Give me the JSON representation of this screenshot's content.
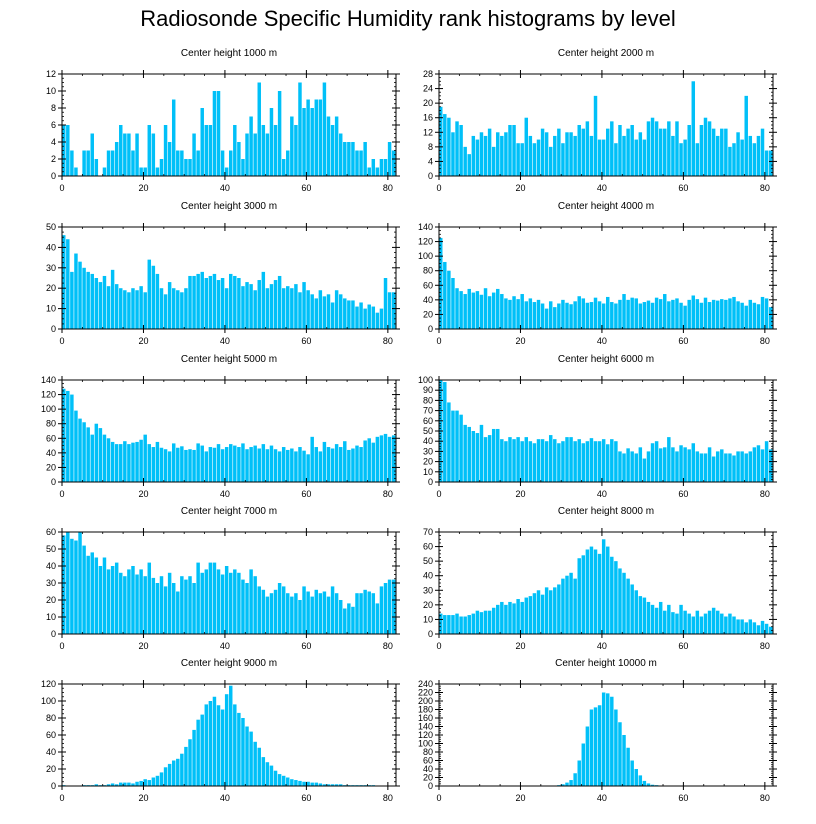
{
  "title": "Radiosonde Specific Humidity rank histograms by level",
  "colors": {
    "bar": "#00C0F8",
    "bar_edge": "#ffffff",
    "axis": "#000000"
  },
  "chart_data": [
    {
      "type": "bar",
      "title": "Center height 1000 m",
      "xlim": [
        0,
        82
      ],
      "ylim": [
        0,
        12
      ],
      "xticks": [
        0,
        20,
        40,
        60,
        80
      ],
      "yticks": [
        0,
        2,
        4,
        6,
        8,
        10,
        12
      ],
      "values": [
        6,
        6,
        3,
        1,
        0,
        3,
        3,
        5,
        2,
        0,
        1,
        3,
        3,
        4,
        6,
        5,
        5,
        3,
        5,
        1,
        1,
        6,
        5,
        1,
        2,
        6,
        4,
        9,
        3,
        3,
        2,
        2,
        5,
        3,
        8,
        6,
        6,
        10,
        10,
        3,
        1,
        3,
        6,
        4,
        2,
        5,
        7,
        5,
        11,
        6,
        5,
        8,
        6,
        10,
        2,
        3,
        7,
        6,
        11,
        8,
        9,
        8,
        9,
        9,
        11,
        7,
        6,
        7,
        5,
        4,
        4,
        4,
        3,
        3,
        4,
        1,
        2,
        1,
        2,
        2,
        4,
        3
      ]
    },
    {
      "type": "bar",
      "title": "Center height 2000 m",
      "xlim": [
        0,
        82
      ],
      "ylim": [
        0,
        28
      ],
      "xticks": [
        0,
        20,
        40,
        60,
        80
      ],
      "yticks": [
        0,
        4,
        8,
        12,
        16,
        20,
        24,
        28
      ],
      "values": [
        19,
        17,
        16,
        12,
        15,
        14,
        8,
        6,
        11,
        10,
        12,
        11,
        13,
        8,
        12,
        11,
        12,
        14,
        14,
        9,
        9,
        16,
        11,
        9,
        10,
        13,
        12,
        8,
        11,
        13,
        9,
        12,
        12,
        11,
        14,
        13,
        15,
        11,
        22,
        10,
        10,
        13,
        15,
        9,
        14,
        11,
        13,
        14,
        10,
        12,
        10,
        15,
        16,
        15,
        13,
        13,
        15,
        11,
        15,
        9,
        10,
        14,
        26,
        9,
        14,
        16,
        15,
        13,
        11,
        13,
        13,
        8,
        9,
        12,
        10,
        22,
        11,
        9,
        11,
        13,
        7,
        7
      ]
    },
    {
      "type": "bar",
      "title": "Center height 3000 m",
      "xlim": [
        0,
        82
      ],
      "ylim": [
        0,
        50
      ],
      "xticks": [
        0,
        20,
        40,
        60,
        80
      ],
      "yticks": [
        0,
        10,
        20,
        30,
        40,
        50
      ],
      "values": [
        46,
        44,
        28,
        37,
        33,
        30,
        28,
        27,
        25,
        23,
        26,
        21,
        29,
        22,
        20,
        19,
        18,
        20,
        19,
        21,
        18,
        34,
        31,
        27,
        20,
        17,
        23,
        20,
        19,
        18,
        20,
        26,
        26,
        27,
        28,
        25,
        26,
        27,
        24,
        25,
        20,
        27,
        26,
        25,
        21,
        23,
        22,
        19,
        24,
        28,
        20,
        22,
        24,
        26,
        20,
        21,
        20,
        22,
        18,
        23,
        19,
        17,
        15,
        19,
        16,
        17,
        13,
        19,
        17,
        15,
        14,
        14,
        11,
        13,
        10,
        12,
        11,
        8,
        10,
        25,
        18,
        18
      ]
    },
    {
      "type": "bar",
      "title": "Center height 4000 m",
      "xlim": [
        0,
        82
      ],
      "ylim": [
        0,
        140
      ],
      "xticks": [
        0,
        20,
        40,
        60,
        80
      ],
      "yticks": [
        0,
        20,
        40,
        60,
        80,
        100,
        120,
        140
      ],
      "values": [
        125,
        92,
        80,
        70,
        56,
        52,
        48,
        55,
        50,
        52,
        47,
        56,
        45,
        50,
        55,
        48,
        42,
        40,
        45,
        41,
        48,
        38,
        42,
        37,
        40,
        35,
        28,
        38,
        30,
        35,
        40,
        36,
        34,
        38,
        45,
        42,
        36,
        37,
        43,
        38,
        35,
        44,
        37,
        35,
        40,
        48,
        40,
        43,
        42,
        35,
        37,
        39,
        36,
        43,
        41,
        48,
        38,
        40,
        42,
        36,
        32,
        40,
        46,
        41,
        36,
        43,
        37,
        40,
        39,
        41,
        40,
        42,
        44,
        38,
        36,
        32,
        40,
        36,
        34,
        44,
        42,
        30
      ]
    },
    {
      "type": "bar",
      "title": "Center height 5000 m",
      "xlim": [
        0,
        82
      ],
      "ylim": [
        0,
        140
      ],
      "xticks": [
        0,
        20,
        40,
        60,
        80
      ],
      "yticks": [
        0,
        20,
        40,
        60,
        80,
        100,
        120,
        140
      ],
      "values": [
        128,
        125,
        120,
        98,
        87,
        82,
        75,
        65,
        80,
        74,
        65,
        60,
        55,
        52,
        52,
        56,
        52,
        54,
        55,
        58,
        65,
        52,
        48,
        55,
        47,
        45,
        42,
        53,
        47,
        49,
        44,
        45,
        44,
        53,
        50,
        42,
        48,
        47,
        52,
        45,
        48,
        52,
        50,
        48,
        53,
        45,
        48,
        50,
        46,
        52,
        45,
        50,
        45,
        42,
        48,
        44,
        46,
        42,
        48,
        43,
        38,
        62,
        48,
        42,
        55,
        48,
        46,
        52,
        48,
        56,
        44,
        46,
        50,
        48,
        57,
        60,
        54,
        62,
        64,
        66,
        62,
        64
      ]
    },
    {
      "type": "bar",
      "title": "Center height 6000 m",
      "xlim": [
        0,
        82
      ],
      "ylim": [
        0,
        100
      ],
      "xticks": [
        0,
        20,
        40,
        60,
        80
      ],
      "yticks": [
        0,
        10,
        20,
        30,
        40,
        50,
        60,
        70,
        80,
        90,
        100
      ],
      "values": [
        100,
        98,
        78,
        70,
        70,
        66,
        56,
        54,
        50,
        48,
        56,
        44,
        46,
        52,
        52,
        42,
        40,
        44,
        42,
        44,
        40,
        44,
        40,
        38,
        42,
        42,
        40,
        46,
        42,
        38,
        40,
        44,
        44,
        40,
        42,
        38,
        40,
        43,
        40,
        40,
        42,
        37,
        42,
        40,
        30,
        28,
        33,
        30,
        28,
        34,
        23,
        30,
        38,
        40,
        33,
        34,
        44,
        34,
        30,
        36,
        34,
        32,
        38,
        30,
        28,
        28,
        34,
        25,
        30,
        32,
        28,
        28,
        26,
        30,
        30,
        28,
        30,
        34,
        36,
        32,
        40,
        32
      ]
    },
    {
      "type": "bar",
      "title": "Center height 7000 m",
      "xlim": [
        0,
        82
      ],
      "ylim": [
        0,
        60
      ],
      "xticks": [
        0,
        20,
        40,
        60,
        80
      ],
      "yticks": [
        0,
        10,
        20,
        30,
        40,
        50,
        60
      ],
      "values": [
        58,
        60,
        56,
        55,
        60,
        52,
        46,
        48,
        45,
        40,
        45,
        38,
        40,
        42,
        36,
        34,
        38,
        40,
        35,
        38,
        34,
        42,
        33,
        30,
        34,
        28,
        36,
        30,
        25,
        34,
        32,
        34,
        30,
        42,
        36,
        38,
        42,
        42,
        38,
        35,
        40,
        36,
        38,
        36,
        32,
        30,
        38,
        34,
        28,
        26,
        22,
        24,
        26,
        30,
        28,
        24,
        22,
        24,
        20,
        28,
        25,
        22,
        26,
        24,
        25,
        22,
        28,
        24,
        20,
        15,
        18,
        16,
        24,
        24,
        26,
        25,
        24,
        18,
        28,
        30,
        32,
        32
      ]
    },
    {
      "type": "bar",
      "title": "Center height 8000 m",
      "xlim": [
        0,
        82
      ],
      "ylim": [
        0,
        70
      ],
      "xticks": [
        0,
        20,
        40,
        60,
        80
      ],
      "yticks": [
        0,
        10,
        20,
        30,
        40,
        50,
        60,
        70
      ],
      "values": [
        14,
        13,
        13,
        13,
        14,
        12,
        12,
        13,
        14,
        16,
        15,
        16,
        16,
        18,
        20,
        22,
        20,
        22,
        21,
        24,
        22,
        25,
        26,
        28,
        30,
        27,
        32,
        30,
        32,
        34,
        38,
        40,
        42,
        38,
        52,
        54,
        58,
        60,
        58,
        55,
        65,
        60,
        53,
        50,
        45,
        42,
        38,
        34,
        30,
        26,
        25,
        22,
        20,
        18,
        22,
        16,
        20,
        15,
        14,
        20,
        16,
        14,
        12,
        16,
        12,
        14,
        16,
        18,
        16,
        14,
        12,
        14,
        12,
        10,
        10,
        8,
        10,
        8,
        6,
        9,
        7,
        5
      ]
    },
    {
      "type": "bar",
      "title": "Center height 9000 m",
      "xlim": [
        0,
        82
      ],
      "ylim": [
        0,
        120
      ],
      "xticks": [
        0,
        20,
        40,
        60,
        80
      ],
      "yticks": [
        0,
        20,
        40,
        60,
        80,
        100,
        120
      ],
      "values": [
        1,
        0,
        0,
        0,
        0,
        1,
        1,
        1,
        2,
        1,
        1,
        2,
        3,
        2,
        4,
        4,
        4,
        3,
        5,
        6,
        8,
        7,
        10,
        12,
        16,
        22,
        26,
        30,
        32,
        38,
        46,
        55,
        66,
        78,
        84,
        96,
        100,
        105,
        95,
        90,
        108,
        118,
        96,
        86,
        80,
        70,
        64,
        52,
        45,
        34,
        28,
        24,
        18,
        14,
        12,
        10,
        8,
        7,
        6,
        5,
        5,
        4,
        4,
        3,
        2,
        2,
        2,
        2,
        2,
        1,
        1,
        1,
        1,
        1,
        1,
        1,
        1,
        0,
        0,
        0,
        0,
        0
      ]
    },
    {
      "type": "bar",
      "title": "Center height 10000 m",
      "xlim": [
        0,
        82
      ],
      "ylim": [
        0,
        240
      ],
      "xticks": [
        0,
        20,
        40,
        60,
        80
      ],
      "yticks": [
        0,
        20,
        40,
        60,
        80,
        100,
        120,
        140,
        160,
        180,
        200,
        220,
        240
      ],
      "values": [
        0,
        0,
        0,
        0,
        0,
        0,
        0,
        0,
        0,
        0,
        0,
        0,
        0,
        0,
        0,
        0,
        0,
        0,
        0,
        0,
        0,
        0,
        0,
        0,
        0,
        0,
        0,
        0,
        1,
        2,
        4,
        8,
        14,
        30,
        60,
        100,
        140,
        180,
        185,
        190,
        220,
        218,
        210,
        180,
        150,
        120,
        90,
        60,
        40,
        25,
        12,
        6,
        3,
        2,
        1,
        1,
        1,
        1,
        1,
        0,
        0,
        0,
        0,
        0,
        0,
        0,
        0,
        0,
        0,
        0,
        0,
        0,
        0,
        0,
        0,
        0,
        0,
        0,
        0,
        0,
        0,
        0
      ]
    }
  ]
}
